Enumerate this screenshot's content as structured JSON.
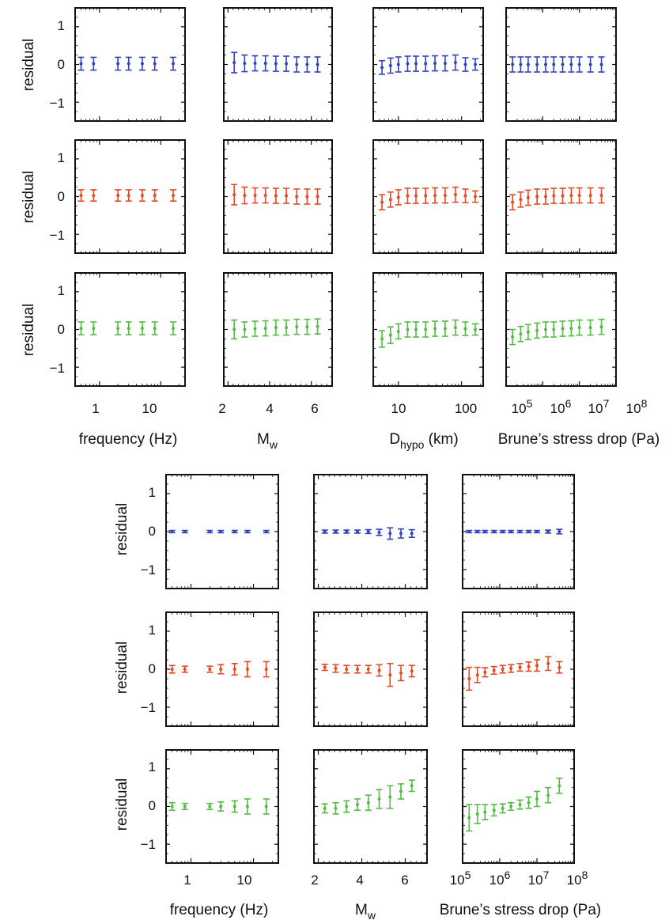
{
  "colors": {
    "blue": "#3344bb",
    "red": "#e64a24",
    "green": "#55bb44",
    "frame": "#111111"
  },
  "ylabel": "residual",
  "yticks": [
    "1",
    "0",
    "−1"
  ],
  "axes": {
    "frequency": {
      "label": "frequency (Hz)",
      "ticks": [
        "1",
        "10"
      ]
    },
    "mw": {
      "label_main": "M",
      "label_sub": "w",
      "ticks": [
        "2",
        "4",
        "6"
      ]
    },
    "dhypo": {
      "label_main": "D",
      "label_sub": "hypo",
      "label_rest": " (km)",
      "ticks": [
        "10",
        "100"
      ]
    },
    "stress": {
      "label": "Brune’s stress drop (Pa)",
      "ticks": [
        "10",
        "10",
        "10",
        "10"
      ],
      "tick_exponents": [
        "5",
        "6",
        "7",
        "8"
      ]
    }
  },
  "chart_data": [
    {
      "type": "scatter",
      "title": "",
      "description": "Upper figure: residuals vs predictor variables (rows: blue, red, green models; columns: frequency, Mw, Dhypo, Brune's stress drop)",
      "ylabel": "residual",
      "ylim": [
        -1.5,
        1.5
      ],
      "rows": [
        "blue",
        "red",
        "green"
      ],
      "columns": [
        {
          "xlabel": "frequency (Hz)",
          "scale": "log",
          "xlim": [
            0.4,
            25
          ],
          "x": [
            0.5,
            0.8,
            2,
            3,
            5,
            8,
            16
          ],
          "series": {
            "blue": {
              "y": [
                0.02,
                0.02,
                0.02,
                0.02,
                0.02,
                0.02,
                0.02
              ],
              "err": [
                0.17,
                0.17,
                0.17,
                0.17,
                0.17,
                0.17,
                0.17
              ]
            },
            "red": {
              "y": [
                0.03,
                0.03,
                0.03,
                0.03,
                0.03,
                0.03,
                0.03
              ],
              "err": [
                0.15,
                0.15,
                0.15,
                0.15,
                0.15,
                0.15,
                0.15
              ]
            },
            "green": {
              "y": [
                0.03,
                0.03,
                0.03,
                0.03,
                0.03,
                0.03,
                0.03
              ],
              "err": [
                0.17,
                0.17,
                0.17,
                0.17,
                0.17,
                0.17,
                0.17
              ]
            }
          }
        },
        {
          "xlabel": "Mw",
          "scale": "linear",
          "xlim": [
            1.8,
            7.0
          ],
          "x": [
            2.3,
            2.8,
            3.3,
            3.8,
            4.3,
            4.8,
            5.3,
            5.8,
            6.3
          ],
          "series": {
            "blue": {
              "y": [
                0.05,
                0.03,
                0.03,
                0.03,
                0.02,
                0.02,
                0.0,
                0.0,
                0.0
              ],
              "err": [
                0.27,
                0.22,
                0.2,
                0.2,
                0.2,
                0.2,
                0.2,
                0.2,
                0.2
              ]
            },
            "red": {
              "y": [
                0.05,
                0.03,
                0.03,
                0.03,
                0.02,
                0.02,
                0.0,
                0.0,
                0.0
              ],
              "err": [
                0.27,
                0.22,
                0.2,
                0.2,
                0.2,
                0.2,
                0.2,
                0.2,
                0.2
              ]
            },
            "green": {
              "y": [
                0.0,
                0.0,
                0.02,
                0.03,
                0.05,
                0.05,
                0.07,
                0.07,
                0.08
              ],
              "err": [
                0.25,
                0.2,
                0.2,
                0.2,
                0.2,
                0.2,
                0.2,
                0.2,
                0.2
              ]
            }
          }
        },
        {
          "xlabel": "Dhypo (km)",
          "scale": "log",
          "xlim": [
            4,
            220
          ],
          "x": [
            5.5,
            7.5,
            10,
            14,
            19,
            27,
            38,
            55,
            80,
            115,
            165
          ],
          "series": {
            "blue": {
              "y": [
                -0.08,
                -0.03,
                0.0,
                0.02,
                0.02,
                0.02,
                0.03,
                0.03,
                0.05,
                0.0,
                0.0
              ],
              "err": [
                0.18,
                0.2,
                0.2,
                0.2,
                0.2,
                0.2,
                0.2,
                0.2,
                0.2,
                0.18,
                0.15
              ]
            },
            "red": {
              "y": [
                -0.15,
                -0.08,
                -0.02,
                0.02,
                0.02,
                0.02,
                0.03,
                0.03,
                0.05,
                0.02,
                0.0
              ],
              "err": [
                0.2,
                0.2,
                0.2,
                0.2,
                0.2,
                0.2,
                0.2,
                0.2,
                0.2,
                0.18,
                0.15
              ]
            },
            "green": {
              "y": [
                -0.25,
                -0.15,
                -0.05,
                0.0,
                0.0,
                0.0,
                0.02,
                0.02,
                0.05,
                0.02,
                0.0
              ],
              "err": [
                0.22,
                0.22,
                0.2,
                0.2,
                0.2,
                0.2,
                0.2,
                0.2,
                0.2,
                0.18,
                0.15
              ]
            }
          }
        },
        {
          "xlabel": "Brune's stress drop (Pa)",
          "scale": "log",
          "xlim": [
            100000,
            100000000
          ],
          "x": [
            150000,
            250000,
            400000,
            700000,
            1200000,
            2000000,
            3500000,
            6000000,
            10000000,
            20000000,
            40000000
          ],
          "series": {
            "blue": {
              "y": [
                0.0,
                0.0,
                0.0,
                0.0,
                0.0,
                0.0,
                0.0,
                0.0,
                0.0,
                0.0,
                0.0
              ],
              "err": [
                0.2,
                0.2,
                0.2,
                0.2,
                0.2,
                0.2,
                0.2,
                0.2,
                0.2,
                0.2,
                0.2
              ]
            },
            "red": {
              "y": [
                -0.15,
                -0.08,
                -0.03,
                0.0,
                0.0,
                0.02,
                0.02,
                0.03,
                0.03,
                0.03,
                0.03
              ],
              "err": [
                0.2,
                0.2,
                0.2,
                0.2,
                0.2,
                0.2,
                0.2,
                0.2,
                0.2,
                0.2,
                0.2
              ]
            },
            "green": {
              "y": [
                -0.2,
                -0.12,
                -0.07,
                -0.03,
                0.0,
                0.0,
                0.02,
                0.03,
                0.05,
                0.05,
                0.07
              ],
              "err": [
                0.2,
                0.2,
                0.2,
                0.2,
                0.2,
                0.2,
                0.2,
                0.2,
                0.2,
                0.2,
                0.2
              ]
            }
          }
        }
      ]
    },
    {
      "type": "scatter",
      "title": "",
      "description": "Lower figure: residuals vs predictor variables (rows: blue, red, green models; columns: frequency, Mw, Brune's stress drop)",
      "ylabel": "residual",
      "ylim": [
        -1.5,
        1.5
      ],
      "rows": [
        "blue",
        "red",
        "green"
      ],
      "columns": [
        {
          "xlabel": "frequency (Hz)",
          "scale": "log",
          "xlim": [
            0.4,
            25
          ],
          "x": [
            0.5,
            0.8,
            2,
            3,
            5,
            8,
            16
          ],
          "series": {
            "blue": {
              "y": [
                0.0,
                0.0,
                0.0,
                0.0,
                0.0,
                0.0,
                0.0
              ],
              "err": [
                0.03,
                0.03,
                0.03,
                0.03,
                0.03,
                0.03,
                0.03
              ]
            },
            "red": {
              "y": [
                0.0,
                0.0,
                0.0,
                0.0,
                0.0,
                0.0,
                0.0
              ],
              "err": [
                0.1,
                0.08,
                0.08,
                0.12,
                0.15,
                0.2,
                0.2
              ]
            },
            "green": {
              "y": [
                0.0,
                0.0,
                0.0,
                0.0,
                0.0,
                0.0,
                0.0
              ],
              "err": [
                0.1,
                0.08,
                0.08,
                0.12,
                0.15,
                0.2,
                0.2
              ]
            }
          }
        },
        {
          "xlabel": "Mw",
          "scale": "linear",
          "xlim": [
            1.8,
            7.0
          ],
          "x": [
            2.3,
            2.8,
            3.3,
            3.8,
            4.3,
            4.8,
            5.3,
            5.8,
            6.3
          ],
          "series": {
            "blue": {
              "y": [
                0.0,
                0.0,
                0.0,
                0.0,
                0.0,
                -0.02,
                -0.05,
                -0.05,
                -0.05
              ],
              "err": [
                0.04,
                0.04,
                0.04,
                0.04,
                0.05,
                0.08,
                0.15,
                0.12,
                0.1
              ]
            },
            "red": {
              "y": [
                0.05,
                0.02,
                0.0,
                0.0,
                0.0,
                -0.03,
                -0.15,
                -0.1,
                -0.05
              ],
              "err": [
                0.08,
                0.1,
                0.1,
                0.1,
                0.1,
                0.15,
                0.3,
                0.2,
                0.15
              ]
            },
            "green": {
              "y": [
                -0.05,
                -0.05,
                0.0,
                0.05,
                0.1,
                0.2,
                0.25,
                0.4,
                0.55
              ],
              "err": [
                0.12,
                0.15,
                0.15,
                0.15,
                0.2,
                0.25,
                0.3,
                0.2,
                0.15
              ]
            }
          }
        },
        {
          "xlabel": "Brune's stress drop (Pa)",
          "scale": "log",
          "xlim": [
            100000,
            100000000
          ],
          "x": [
            150000,
            250000,
            400000,
            700000,
            1200000,
            2000000,
            3500000,
            6000000,
            10000000,
            20000000,
            40000000
          ],
          "series": {
            "blue": {
              "y": [
                0.0,
                0.0,
                0.0,
                0.0,
                0.0,
                0.0,
                0.0,
                0.0,
                0.0,
                0.0,
                0.0
              ],
              "err": [
                0.03,
                0.03,
                0.03,
                0.03,
                0.03,
                0.03,
                0.03,
                0.03,
                0.03,
                0.04,
                0.06
              ]
            },
            "red": {
              "y": [
                -0.25,
                -0.15,
                -0.08,
                -0.03,
                0.0,
                0.02,
                0.05,
                0.07,
                0.1,
                0.15,
                0.05
              ],
              "err": [
                0.3,
                0.2,
                0.12,
                0.1,
                0.1,
                0.1,
                0.1,
                0.12,
                0.15,
                0.18,
                0.15
              ]
            },
            "green": {
              "y": [
                -0.3,
                -0.2,
                -0.15,
                -0.1,
                -0.05,
                0.0,
                0.05,
                0.1,
                0.2,
                0.3,
                0.55
              ],
              "err": [
                0.35,
                0.25,
                0.2,
                0.15,
                0.12,
                0.1,
                0.12,
                0.15,
                0.2,
                0.2,
                0.2
              ]
            }
          }
        }
      ]
    }
  ]
}
